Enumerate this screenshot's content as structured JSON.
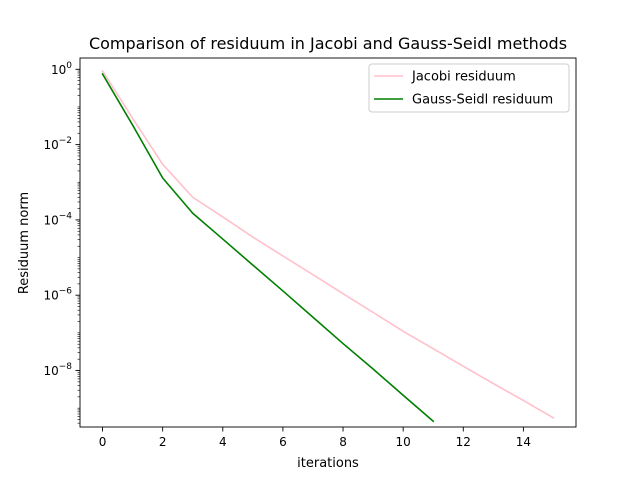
{
  "chart_data": {
    "type": "line",
    "title": "Comparison of residuum in Jacobi and Gauss-Seidl methods",
    "xlabel": "iterations",
    "ylabel": "Residuum norm",
    "xlim": [
      -0.75,
      15.75
    ],
    "ylim_log10": [
      -9.5,
      0.3
    ],
    "yscale": "log",
    "grid": false,
    "legend_position": "top-right",
    "x_ticks": [
      {
        "value": 0,
        "label": "0"
      },
      {
        "value": 2,
        "label": "2"
      },
      {
        "value": 4,
        "label": "4"
      },
      {
        "value": 6,
        "label": "6"
      },
      {
        "value": 8,
        "label": "8"
      },
      {
        "value": 10,
        "label": "10"
      },
      {
        "value": 12,
        "label": "12"
      },
      {
        "value": 14,
        "label": "14"
      }
    ],
    "y_ticks": [
      {
        "exp": 0,
        "base": "10",
        "sup": "0"
      },
      {
        "exp": -2,
        "base": "10",
        "sup": "−2"
      },
      {
        "exp": -4,
        "base": "10",
        "sup": "−4"
      },
      {
        "exp": -6,
        "base": "10",
        "sup": "−6"
      },
      {
        "exp": -8,
        "base": "10",
        "sup": "−8"
      }
    ],
    "series": [
      {
        "name": "Jacobi residuum",
        "color": "#ffc0cb",
        "x": [
          0,
          1,
          2,
          3,
          4,
          5,
          6,
          7,
          8,
          9,
          10,
          11,
          12,
          13,
          14,
          15
        ],
        "y": [
          0.9,
          0.05,
          0.003,
          0.0004,
          0.00012,
          3.5e-05,
          1.1e-05,
          3.5e-06,
          1.1e-06,
          3.5e-07,
          1.1e-07,
          3.8e-08,
          1.3e-08,
          4.5e-09,
          1.6e-09,
          5.5e-10
        ]
      },
      {
        "name": "Gauss-Seidl residuum",
        "color": "#008000",
        "x": [
          0,
          1,
          2,
          3,
          4,
          5,
          6,
          7,
          8,
          9,
          10,
          11
        ],
        "y": [
          0.75,
          0.033,
          0.0013,
          0.00015,
          3.1e-05,
          6.3e-06,
          1.3e-06,
          2.6e-07,
          5.2e-08,
          1.1e-08,
          2.2e-09,
          4.5e-10
        ]
      }
    ]
  }
}
